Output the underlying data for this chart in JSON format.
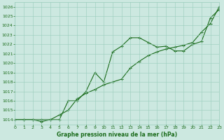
{
  "title": "Graphe pression niveau de la mer (hPa)",
  "xlabel_hours": [
    0,
    1,
    2,
    3,
    4,
    5,
    6,
    7,
    8,
    9,
    10,
    11,
    12,
    13,
    14,
    15,
    16,
    17,
    18,
    19,
    20,
    21,
    22,
    23
  ],
  "line1_y": [
    1014.0,
    1014.0,
    1014.0,
    1013.8,
    1014.0,
    1014.0,
    1016.0,
    1016.0,
    1017.0,
    1019.0,
    1018.0,
    1021.2,
    1021.8,
    1022.7,
    1022.7,
    1022.2,
    1021.7,
    1021.8,
    1021.3,
    1021.3,
    1022.0,
    1022.3,
    1024.8,
    1025.7
  ],
  "line2_y": [
    1014.0,
    1014.0,
    1014.0,
    1014.0,
    1014.0,
    1014.5,
    1015.0,
    1016.2,
    1016.8,
    1017.2,
    1017.7,
    1018.0,
    1018.3,
    1019.5,
    1020.2,
    1020.8,
    1021.2,
    1021.5,
    1021.7,
    1021.9,
    1022.2,
    1023.3,
    1024.2,
    1026.0
  ],
  "xlim": [
    0,
    23
  ],
  "ylim": [
    1013.5,
    1026.5
  ],
  "yticks": [
    1014,
    1015,
    1016,
    1017,
    1018,
    1019,
    1020,
    1021,
    1022,
    1023,
    1024,
    1025,
    1026
  ],
  "xticks": [
    0,
    1,
    2,
    3,
    4,
    5,
    6,
    7,
    8,
    9,
    10,
    11,
    12,
    13,
    14,
    15,
    16,
    17,
    18,
    19,
    20,
    21,
    22,
    23
  ],
  "line_color": "#1a6b1a",
  "bg_color": "#cce8e0",
  "grid_color": "#99ccbb",
  "title_color": "#1a6b1a",
  "tick_label_color": "#1a6b1a",
  "linewidth": 0.8,
  "markersize": 3.5
}
